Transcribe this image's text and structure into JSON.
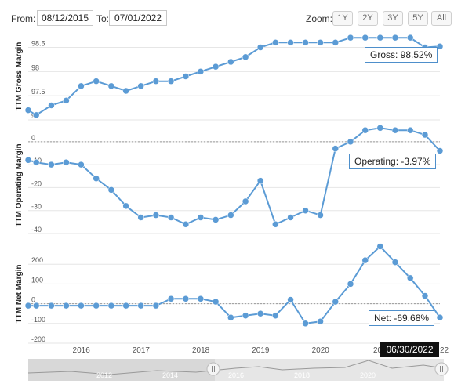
{
  "toolbar": {
    "from_label": "From:",
    "from_value": "08/12/2015",
    "to_label": "To:",
    "to_value": "07/01/2022",
    "zoom_label": "Zoom:",
    "zoom_buttons": [
      "1Y",
      "2Y",
      "3Y",
      "5Y",
      "All"
    ]
  },
  "tooltips": {
    "gross": "Gross: 98.52%",
    "operating": "Operating: -3.97%",
    "net": "Net: -69.68%"
  },
  "date_badge": "06/30/2022",
  "x_axis_labels": [
    "2016",
    "2017",
    "2018",
    "2019",
    "2020",
    "20",
    "22"
  ],
  "navigator_labels": [
    "2012",
    "2014",
    "2016",
    "2018",
    "2020"
  ],
  "colors": {
    "line": "#5b9bd5",
    "badge": "#111111",
    "grid": "#e6e6e6"
  },
  "chart_data": [
    {
      "type": "line",
      "ylabel": "TTM Gross Margin",
      "ylim": [
        97.0,
        98.8
      ],
      "yticks": [
        97.0,
        97.5,
        98.0,
        98.5
      ],
      "x": [
        "2015-08-12",
        "2015-09-30",
        "2015-12-31",
        "2016-03-31",
        "2016-06-30",
        "2016-09-30",
        "2016-12-31",
        "2017-03-31",
        "2017-06-30",
        "2017-09-30",
        "2017-12-31",
        "2018-03-31",
        "2018-06-30",
        "2018-09-30",
        "2018-12-31",
        "2019-03-31",
        "2019-06-30",
        "2019-09-30",
        "2019-12-31",
        "2020-03-31",
        "2020-06-30",
        "2020-09-30",
        "2020-12-31",
        "2021-03-31",
        "2021-06-30",
        "2021-09-30",
        "2021-12-31",
        "2022-03-31",
        "2022-06-30"
      ],
      "values": [
        97.2,
        97.1,
        97.3,
        97.4,
        97.7,
        97.8,
        97.7,
        97.6,
        97.7,
        97.8,
        97.8,
        97.9,
        98.0,
        98.1,
        98.2,
        98.3,
        98.5,
        98.6,
        98.6,
        98.6,
        98.6,
        98.6,
        98.7,
        98.7,
        98.7,
        98.7,
        98.7,
        98.5,
        98.52
      ]
    },
    {
      "type": "line",
      "ylabel": "TTM Operating Margin",
      "ylim": [
        -40,
        2
      ],
      "yticks": [
        -40,
        -30,
        -20,
        -10,
        0
      ],
      "x": [
        "2015-08-12",
        "2015-09-30",
        "2015-12-31",
        "2016-03-31",
        "2016-06-30",
        "2016-09-30",
        "2016-12-31",
        "2017-03-31",
        "2017-06-30",
        "2017-09-30",
        "2017-12-31",
        "2018-03-31",
        "2018-06-30",
        "2018-09-30",
        "2018-12-31",
        "2019-03-31",
        "2019-06-30",
        "2019-09-30",
        "2019-12-31",
        "2020-03-31",
        "2020-06-30",
        "2020-09-30",
        "2020-12-31",
        "2021-03-31",
        "2021-06-30",
        "2021-09-30",
        "2021-12-31",
        "2022-03-31",
        "2022-06-30"
      ],
      "values": [
        -8,
        -9,
        -10,
        -9,
        -10,
        -16,
        -21,
        -28,
        -33,
        -32,
        -33,
        -36,
        -33,
        -34,
        -32,
        -26,
        -17,
        -36,
        -33,
        -30,
        -32,
        -3,
        0,
        5,
        6,
        5,
        5,
        3,
        -3.97
      ]
    },
    {
      "type": "line",
      "ylabel": "TTM Net Margin",
      "ylim": [
        -200,
        300
      ],
      "yticks": [
        -200,
        -100,
        0,
        100,
        200
      ],
      "x": [
        "2015-08-12",
        "2015-09-30",
        "2015-12-31",
        "2016-03-31",
        "2016-06-30",
        "2016-09-30",
        "2016-12-31",
        "2017-03-31",
        "2017-06-30",
        "2017-09-30",
        "2017-12-31",
        "2018-03-31",
        "2018-06-30",
        "2018-09-30",
        "2018-12-31",
        "2019-03-31",
        "2019-06-30",
        "2019-09-30",
        "2019-12-31",
        "2020-03-31",
        "2020-06-30",
        "2020-09-30",
        "2020-12-31",
        "2021-03-31",
        "2021-06-30",
        "2021-09-30",
        "2021-12-31",
        "2022-03-31",
        "2022-06-30"
      ],
      "values": [
        -10,
        -10,
        -10,
        -10,
        -10,
        -10,
        -10,
        -10,
        -10,
        -10,
        25,
        25,
        25,
        10,
        -70,
        -60,
        -50,
        -60,
        20,
        -100,
        -90,
        10,
        100,
        220,
        290,
        210,
        130,
        40,
        -69.68
      ]
    }
  ]
}
